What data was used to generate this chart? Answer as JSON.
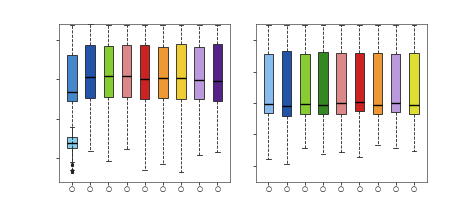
{
  "left_colors": [
    "#2255aa",
    "#88cc33",
    "#dd8888",
    "#cc2222",
    "#ee9933",
    "#eecc33",
    "#bb99dd",
    "#552288",
    "#dddd33"
  ],
  "left_special_color": "#4488cc",
  "left_special_low_color": "#88ccee",
  "right_colors": [
    "#88bbee",
    "#2255aa",
    "#88cc33",
    "#338822",
    "#dd8888",
    "#cc2222",
    "#ee9933",
    "#bb99dd",
    "#dddd33"
  ],
  "bg_color": "#ffffff",
  "lc": "#222222"
}
